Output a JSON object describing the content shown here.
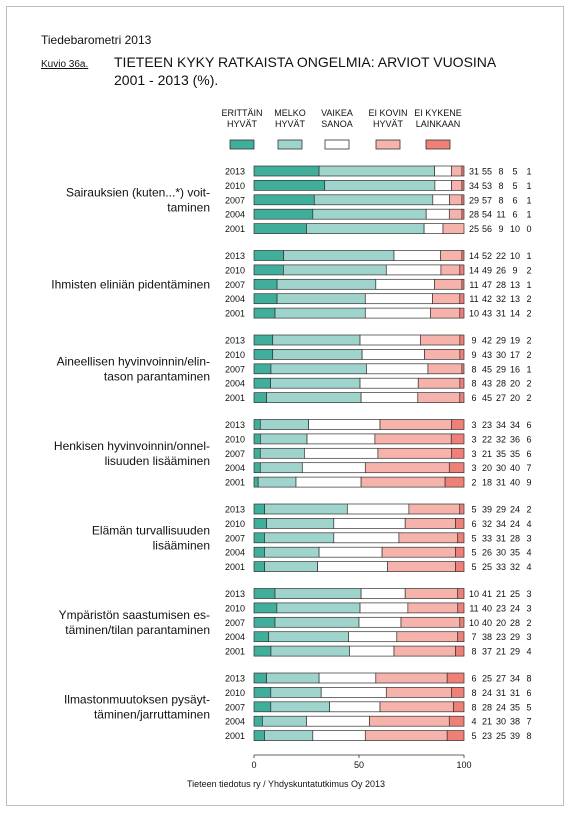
{
  "header": {
    "publication": "Tiedebarometri 2013",
    "figure_label": "Kuvio 36a.",
    "title_line1": "TIETEEN KYKY RATKAISTA ONGELMIA: ARVIOT VUOSINA",
    "title_line2": "2001 - 2013 (%)."
  },
  "source": "Tieteen tiedotus ry / Yhdyskuntatutkimus Oy 2013",
  "colors": {
    "erittain_hyvat": "#3fae9b",
    "melko_hyvat": "#9fd4cd",
    "vaikea_sanoa": "#ffffff",
    "ei_kovin_hyvat": "#f5b3ab",
    "ei_kykene_lainkaan": "#ee8078",
    "bar_border": "#333333"
  },
  "chart_data": {
    "type": "bar",
    "orientation": "horizontal",
    "stacked": true,
    "xlim": [
      0,
      100
    ],
    "x_ticks": [
      "0",
      "50",
      "100"
    ],
    "grid": false,
    "legend_position": "top",
    "series": [
      {
        "name_line1": "ERITTÄIN",
        "name_line2": "HYVÄT"
      },
      {
        "name_line1": "MELKO",
        "name_line2": "HYVÄT"
      },
      {
        "name_line1": "VAIKEA",
        "name_line2": "SANOA"
      },
      {
        "name_line1": "EI KOVIN",
        "name_line2": "HYVÄT"
      },
      {
        "name_line1": "EI KYKENE",
        "name_line2": "LAINKAAN"
      }
    ],
    "years": [
      "2013",
      "2010",
      "2007",
      "2004",
      "2001"
    ],
    "groups": [
      {
        "label_lines": [
          "Sairauksien (kuten...*) voit-",
          "taminen"
        ],
        "values": [
          [
            31,
            55,
            8,
            5,
            1
          ],
          [
            34,
            53,
            8,
            5,
            1
          ],
          [
            29,
            57,
            8,
            6,
            1
          ],
          [
            28,
            54,
            11,
            6,
            1
          ],
          [
            25,
            56,
            9,
            10,
            0
          ]
        ]
      },
      {
        "label_lines": [
          "Ihmisten eliniän pidentäminen"
        ],
        "values": [
          [
            14,
            52,
            22,
            10,
            1
          ],
          [
            14,
            49,
            26,
            9,
            2
          ],
          [
            11,
            47,
            28,
            13,
            1
          ],
          [
            11,
            42,
            32,
            13,
            2
          ],
          [
            10,
            43,
            31,
            14,
            2
          ]
        ]
      },
      {
        "label_lines": [
          "Aineellisen hyvinvoinnin/elin-",
          "tason parantaminen"
        ],
        "values": [
          [
            9,
            42,
            29,
            19,
            2
          ],
          [
            9,
            43,
            30,
            17,
            2
          ],
          [
            8,
            45,
            29,
            16,
            1
          ],
          [
            8,
            43,
            28,
            20,
            2
          ],
          [
            6,
            45,
            27,
            20,
            2
          ]
        ]
      },
      {
        "label_lines": [
          "Henkisen hyvinvoinnin/onnel-",
          "lisuuden lisääminen"
        ],
        "values": [
          [
            3,
            23,
            34,
            34,
            6
          ],
          [
            3,
            22,
            32,
            36,
            6
          ],
          [
            3,
            21,
            35,
            35,
            6
          ],
          [
            3,
            20,
            30,
            40,
            7
          ],
          [
            2,
            18,
            31,
            40,
            9
          ]
        ]
      },
      {
        "label_lines": [
          "Elämän turvallisuuden",
          "lisääminen"
        ],
        "values": [
          [
            5,
            39,
            29,
            24,
            2
          ],
          [
            6,
            32,
            34,
            24,
            4
          ],
          [
            5,
            33,
            31,
            28,
            3
          ],
          [
            5,
            26,
            30,
            35,
            4
          ],
          [
            5,
            25,
            33,
            32,
            4
          ]
        ]
      },
      {
        "label_lines": [
          "Ympäristön saastumisen es-",
          "täminen/tilan parantaminen"
        ],
        "values": [
          [
            10,
            41,
            21,
            25,
            3
          ],
          [
            11,
            40,
            23,
            24,
            3
          ],
          [
            10,
            40,
            20,
            28,
            2
          ],
          [
            7,
            38,
            23,
            29,
            3
          ],
          [
            8,
            37,
            21,
            29,
            4
          ]
        ]
      },
      {
        "label_lines": [
          "Ilmastonmuutoksen pysäyt-",
          "täminen/jarruttaminen"
        ],
        "values": [
          [
            6,
            25,
            27,
            34,
            8
          ],
          [
            8,
            24,
            31,
            31,
            6
          ],
          [
            8,
            28,
            24,
            35,
            5
          ],
          [
            4,
            21,
            30,
            38,
            7
          ],
          [
            5,
            23,
            25,
            39,
            8
          ]
        ]
      }
    ]
  }
}
